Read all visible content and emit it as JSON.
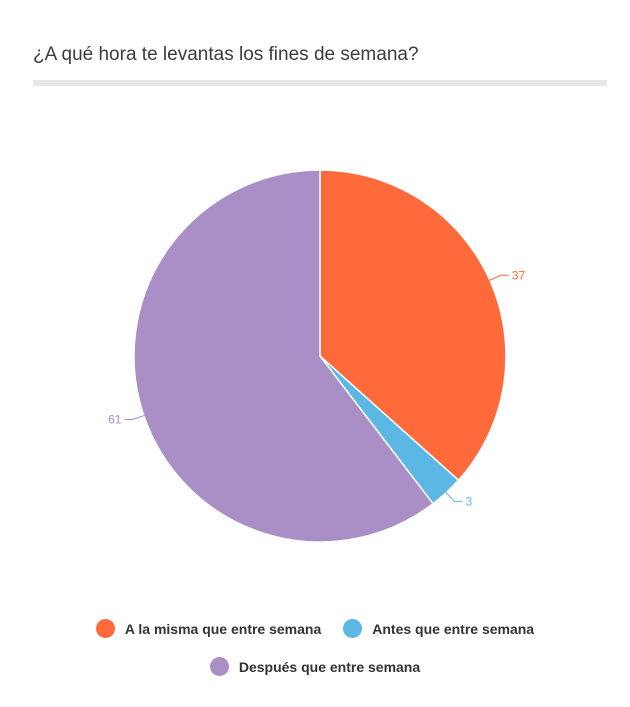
{
  "chart_data": {
    "type": "pie",
    "title": "¿A qué hora te levantas los fines de semana?",
    "slices": [
      {
        "label": "A la misma que entre semana",
        "value": 37,
        "color": "#FF6A3B"
      },
      {
        "label": "Antes que entre semana",
        "value": 3,
        "color": "#5BB8E4"
      },
      {
        "label": "Después que entre semana",
        "value": 61,
        "color": "#A98FC6"
      }
    ],
    "legend_position": "bottom",
    "start_angle": "top, clockwise"
  }
}
